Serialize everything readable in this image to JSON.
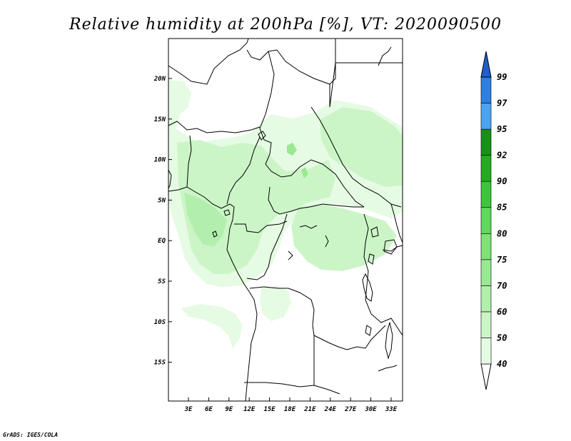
{
  "title": "Relative humidity at 200hPa [%], VT: 2020090500",
  "credit": "GrADS: IGES/COLA",
  "axes": {
    "lat_labels": [
      "20N",
      "15N",
      "10N",
      "5N",
      "EQ",
      "5S",
      "10S",
      "15S"
    ],
    "lon_labels": [
      "3E",
      "6E",
      "9E",
      "12E",
      "15E",
      "18E",
      "21E",
      "24E",
      "27E",
      "30E",
      "33E"
    ]
  },
  "colorbar": {
    "levels": [
      "40",
      "50",
      "60",
      "70",
      "75",
      "80",
      "85",
      "90",
      "92",
      "95",
      "97",
      "99"
    ],
    "colors": [
      "#ffffff",
      "#e6fbe3",
      "#ccf5c7",
      "#b2efad",
      "#98e992",
      "#7ee277",
      "#5fd85c",
      "#3dc63c",
      "#24ab22",
      "#1a8f18",
      "#4da3f0",
      "#2e7fe0",
      "#1f5fcf"
    ]
  },
  "fill_colors": {
    "light": "#e6fbe3",
    "mid": "#ccf5c7",
    "dark": "#b2efad",
    "peak": "#98e992"
  }
}
